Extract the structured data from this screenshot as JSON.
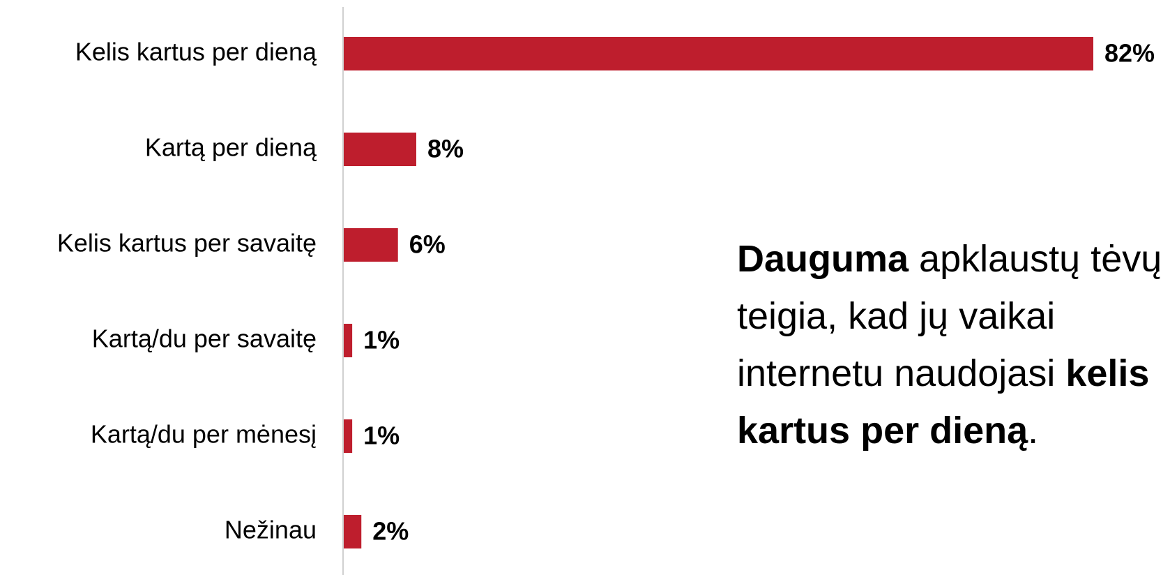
{
  "chart_data": {
    "type": "hbar",
    "categories": [
      "Kelis kartus per dieną",
      "Kartą per dieną",
      "Kelis kartus per savaitę",
      "Kartą/du per savaitę",
      "Kartą/du per mėnesį",
      "Nežinau"
    ],
    "values": [
      82,
      8,
      6,
      1,
      1,
      2
    ],
    "value_labels": [
      "82%",
      "8%",
      "6%",
      "1%",
      "1%",
      "2%"
    ],
    "color": "#be1e2d",
    "annotation": {
      "segments": [
        {
          "text": "Dauguma",
          "bold": true
        },
        {
          "text": " apklaustų tėvų teigia, kad jų vaikai internetu naudojasi ",
          "bold": false
        },
        {
          "text": "kelis kartus per dieną",
          "bold": true
        },
        {
          "text": ".",
          "bold": false
        }
      ]
    }
  }
}
